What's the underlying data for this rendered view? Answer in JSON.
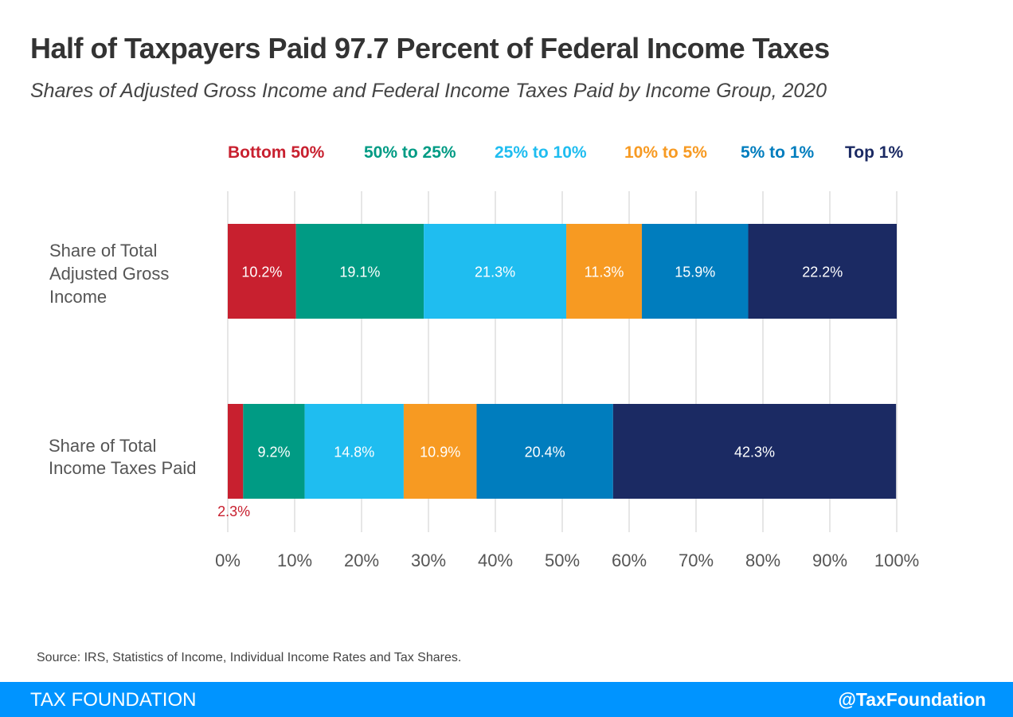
{
  "title": "Half of Taxpayers Paid 97.7 Percent of Federal Income Taxes",
  "subtitle": "Shares of Adjusted Gross Income and Federal Income Taxes Paid by Income Group, 2020",
  "source": "Source: IRS, Statistics of Income, Individual Income Rates and Tax Shares.",
  "footer": {
    "org": "TAX FOUNDATION",
    "handle": "@TaxFoundation"
  },
  "colors": {
    "bottom50": "#c8202f",
    "p50to25": "#009b84",
    "p25to10": "#1fbdf0",
    "p10to5": "#f79a22",
    "p5to1": "#007dbe",
    "top1": "#1b2a63",
    "grid": "#d9d9d9",
    "axis_text": "#555555",
    "footer": "#0094ff"
  },
  "chart_data": {
    "type": "bar",
    "orientation": "horizontal",
    "stacked": true,
    "title": "Half of Taxpayers Paid 97.7 Percent of Federal Income Taxes",
    "xlabel": "",
    "ylabel": "",
    "xlim": [
      0,
      100
    ],
    "xticks": [
      "0%",
      "10%",
      "20%",
      "30%",
      "40%",
      "50%",
      "60%",
      "70%",
      "80%",
      "90%",
      "100%"
    ],
    "grid": true,
    "legend_position": "top",
    "categories": [
      [
        "Share of Total",
        "Adjusted Gross",
        "Income"
      ],
      [
        "Share of Total",
        "Income Taxes Paid"
      ]
    ],
    "series": [
      {
        "name": "Bottom 50%",
        "color": "#c8202f",
        "values": [
          10.2,
          2.3
        ],
        "labels": [
          "10.2%",
          "2.3%"
        ]
      },
      {
        "name": "50% to 25%",
        "color": "#009b84",
        "values": [
          19.1,
          9.2
        ],
        "labels": [
          "19.1%",
          "9.2%"
        ]
      },
      {
        "name": "25% to 10%",
        "color": "#1fbdf0",
        "values": [
          21.3,
          14.8
        ],
        "labels": [
          "21.3%",
          "14.8%"
        ]
      },
      {
        "name": "10% to 5%",
        "color": "#f79a22",
        "values": [
          11.3,
          10.9
        ],
        "labels": [
          "11.3%",
          "10.9%"
        ]
      },
      {
        "name": "5% to 1%",
        "color": "#007dbe",
        "values": [
          15.9,
          20.4
        ],
        "labels": [
          "15.9%",
          "20.4%"
        ]
      },
      {
        "name": "Top 1%",
        "color": "#1b2a63",
        "values": [
          22.2,
          42.3
        ],
        "labels": [
          "22.2%",
          "42.3%"
        ]
      }
    ]
  }
}
